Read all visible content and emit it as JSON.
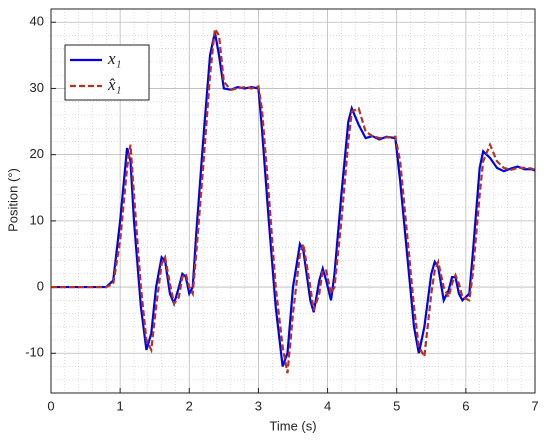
{
  "chart_data": {
    "type": "line",
    "xlabel": "Time (s)",
    "ylabel": "Position (°)",
    "x": [
      0,
      0.8,
      0.9,
      1.0,
      1.1,
      1.15,
      1.2,
      1.3,
      1.38,
      1.45,
      1.52,
      1.6,
      1.65,
      1.72,
      1.78,
      1.85,
      1.9,
      1.95,
      2.0,
      2.05,
      2.1,
      2.2,
      2.3,
      2.37,
      2.43,
      2.5,
      2.6,
      2.7,
      2.8,
      2.9,
      3.0,
      3.05,
      3.15,
      3.25,
      3.35,
      3.42,
      3.5,
      3.6,
      3.65,
      3.75,
      3.8,
      3.88,
      3.93,
      3.98,
      4.05,
      4.1,
      4.2,
      4.3,
      4.35,
      4.45,
      4.55,
      4.65,
      4.75,
      4.85,
      4.98,
      5.05,
      5.15,
      5.25,
      5.32,
      5.4,
      5.5,
      5.55,
      5.6,
      5.68,
      5.75,
      5.8,
      5.85,
      5.9,
      5.95,
      6.05,
      6.1,
      6.2,
      6.25,
      6.35,
      6.45,
      6.55,
      6.65,
      6.75,
      6.85,
      6.95,
      7.0
    ],
    "series": [
      {
        "name": "x₁",
        "color": "#0000ee",
        "dashed": false,
        "values": [
          0,
          0,
          1,
          10,
          21,
          19,
          10,
          -3,
          -9.5,
          -7,
          0,
          4.5,
          4,
          -1,
          -2.5,
          0,
          2,
          1.5,
          -1,
          0,
          8,
          22,
          35,
          38.5,
          35,
          30,
          29.8,
          30.2,
          30,
          30.2,
          30,
          24,
          10,
          -3,
          -12,
          -10,
          0,
          6.5,
          5.5,
          -2,
          -3.8,
          1,
          2.8,
          1,
          -2,
          2,
          14,
          25,
          27,
          24.5,
          22.5,
          22.8,
          22.3,
          22.7,
          22.5,
          16,
          5,
          -6,
          -10,
          -6,
          2,
          3.8,
          3,
          -2,
          -0.5,
          1.5,
          1.5,
          -1,
          -2,
          -1,
          5,
          18,
          20.5,
          19.5,
          18,
          17.5,
          17.9,
          18.2,
          17.8,
          17.8,
          17.6
        ]
      },
      {
        "name": "x̂₁",
        "color": "#b5331e",
        "dashed": true,
        "values": [
          0,
          0,
          0.5,
          7,
          18,
          21.5,
          14,
          0,
          -8,
          -9.5,
          -3,
          3.5,
          4.5,
          0.5,
          -2.5,
          -1.5,
          1.5,
          2,
          0,
          -1,
          5,
          18,
          32,
          39,
          38,
          31,
          29.8,
          30,
          30.2,
          30,
          30.3,
          27,
          14,
          0,
          -9,
          -13,
          -4,
          5,
          6.5,
          0,
          -3.5,
          -1,
          2.5,
          2.5,
          -1,
          0,
          10,
          22,
          26.5,
          27,
          23.5,
          22.8,
          22.5,
          22.6,
          22.7,
          19,
          8,
          -3,
          -9,
          -10.5,
          -1,
          2.5,
          3.8,
          0,
          -1.5,
          0.5,
          1.8,
          0.5,
          -1.5,
          -2,
          2,
          14,
          19,
          21.5,
          19,
          18,
          17.7,
          18,
          18,
          17.9,
          17.7
        ]
      }
    ],
    "xlim": [
      0,
      7
    ],
    "ylim": [
      -16,
      42
    ],
    "xticks": [
      0,
      1,
      2,
      3,
      4,
      5,
      6,
      7
    ],
    "yticks": [
      -10,
      0,
      10,
      20,
      30,
      40
    ],
    "grid": true,
    "minor_grid": true,
    "legend": "upper-left"
  }
}
